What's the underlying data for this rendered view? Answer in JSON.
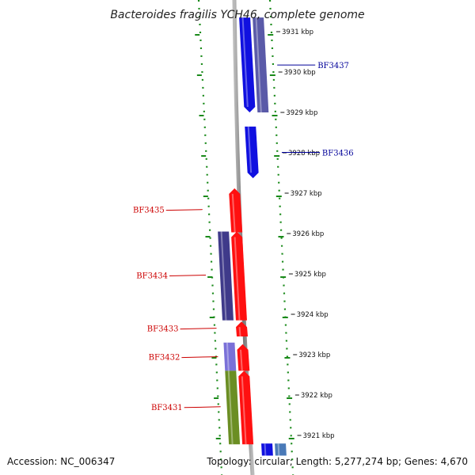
{
  "title": "Bacteroides fragilis YCH46, complete genome",
  "footer": {
    "accession": "Accession: NC_006347",
    "summary": "Topology: circular; Length: 5,277,274 bp; Genes: 4,670"
  },
  "colors": {
    "ring_green": "#1a8a1a",
    "backbone": "#888888",
    "label_forward": "#cc0000",
    "label_reverse": "#000099"
  },
  "chart_data": {
    "type": "genome-map",
    "ticks": [
      {
        "kbp": 3931,
        "label": "3931 kbp"
      },
      {
        "kbp": 3930,
        "label": "3930 kbp"
      },
      {
        "kbp": 3929,
        "label": "3929 kbp"
      },
      {
        "kbp": 3928,
        "label": "3928 kbp"
      },
      {
        "kbp": 3927,
        "label": "3927 kbp"
      },
      {
        "kbp": 3926,
        "label": "3926 kbp"
      },
      {
        "kbp": 3925,
        "label": "3925 kbp"
      },
      {
        "kbp": 3924,
        "label": "3924 kbp"
      },
      {
        "kbp": 3923,
        "label": "3923 kbp"
      },
      {
        "kbp": 3922,
        "label": "3922 kbp"
      },
      {
        "kbp": 3921,
        "label": "3921 kbp"
      }
    ],
    "genes": [
      {
        "name": "BF3437",
        "label": "BF3437",
        "strand": "-",
        "start_kbp": 3929.0,
        "end_kbp": 3931.35,
        "color": "#1010e0"
      },
      {
        "name": "BF3436",
        "label": "BF3436",
        "strand": "-",
        "start_kbp": 3927.37,
        "end_kbp": 3928.65,
        "color": "#1010e0"
      },
      {
        "name": "BF3435",
        "label": "BF3435",
        "strand": "+",
        "start_kbp": 3926.03,
        "end_kbp": 3927.12,
        "color": "#ff1010"
      },
      {
        "name": "BF3434",
        "label": "BF3434",
        "strand": "+",
        "start_kbp": 3923.85,
        "end_kbp": 3926.05,
        "color": "#ff1010"
      },
      {
        "name": "BF3433",
        "label": "BF3433",
        "strand": "+",
        "start_kbp": 3923.45,
        "end_kbp": 3923.82,
        "color": "#ff1010"
      },
      {
        "name": "BF3432",
        "label": "BF3432",
        "strand": "+",
        "start_kbp": 3922.6,
        "end_kbp": 3923.26,
        "color": "#ff1010"
      },
      {
        "name": "BF3431",
        "label": "BF3431",
        "strand": "+",
        "start_kbp": 3920.78,
        "end_kbp": 3922.6,
        "color": "#ff1010"
      }
    ],
    "features": [
      {
        "name": "feature-1",
        "start_kbp": 3929.0,
        "end_kbp": 3931.35,
        "color": "#5a5aa8",
        "track": "outer"
      },
      {
        "name": "feature-2",
        "start_kbp": 3923.85,
        "end_kbp": 3926.05,
        "color": "#3f3a8a",
        "track": "inner"
      },
      {
        "name": "feature-3",
        "start_kbp": 3922.6,
        "end_kbp": 3923.3,
        "color": "#7a70d8",
        "track": "inner"
      },
      {
        "name": "feature-4",
        "start_kbp": 3920.78,
        "end_kbp": 3922.6,
        "color": "#6b8e23",
        "track": "inner"
      },
      {
        "name": "feature-5",
        "start_kbp": 3920.5,
        "end_kbp": 3920.8,
        "color": "#1010e0",
        "track": "reverse"
      },
      {
        "name": "feature-6",
        "start_kbp": 3920.5,
        "end_kbp": 3920.8,
        "color": "#4a7ab8",
        "track": "outer"
      }
    ]
  }
}
